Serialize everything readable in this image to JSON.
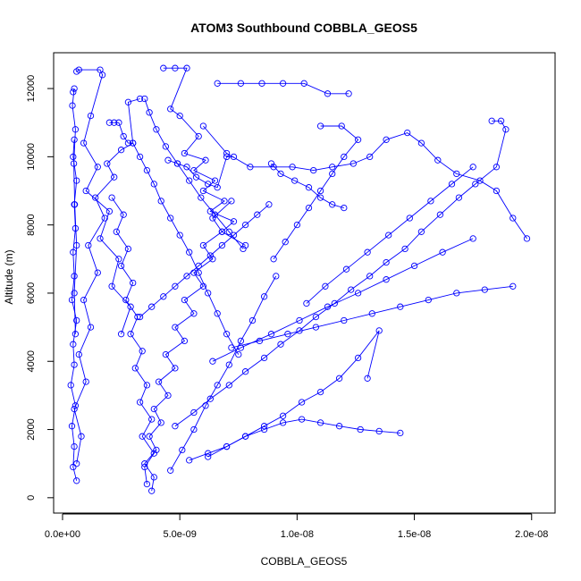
{
  "chart_data": {
    "type": "line",
    "title": "ATOM3 Southbound COBBLA_GEOS5",
    "xlabel": "COBBLA_GEOS5",
    "ylabel": "Altitude (m)",
    "xlim": [
      -3.8e-10,
      2.1e-08
    ],
    "ylim": [
      -450,
      13050
    ],
    "x_ticks": [
      {
        "value": 0,
        "label": "0.0e+00"
      },
      {
        "value": 5e-09,
        "label": "5.0e-09"
      },
      {
        "value": 1e-08,
        "label": "1.0e-08"
      },
      {
        "value": 1.5e-08,
        "label": "1.5e-08"
      },
      {
        "value": 2e-08,
        "label": "2.0e-08"
      }
    ],
    "y_ticks": [
      {
        "value": 0,
        "label": "0"
      },
      {
        "value": 2000,
        "label": "2000"
      },
      {
        "value": 4000,
        "label": "4000"
      },
      {
        "value": 6000,
        "label": "6000"
      },
      {
        "value": 8000,
        "label": "8000"
      },
      {
        "value": 10000,
        "label": "10000"
      },
      {
        "value": 12000,
        "label": "12000"
      }
    ],
    "grid": false,
    "legend": "none",
    "line_color": "#0000ff",
    "marker": "open-circle",
    "series": [
      {
        "x": [
          6e-10,
          4.5e-10,
          5e-10,
          4e-10,
          5.5e-10,
          3.5e-10,
          5e-10,
          4.5e-10,
          6e-10,
          4e-10,
          5e-10,
          4.5e-10,
          5.5e-10,
          5e-10,
          6e-10,
          4.5e-10,
          5e-10
        ],
        "y": [
          500,
          900,
          1500,
          2100,
          2700,
          3300,
          3900,
          4500,
          5200,
          5800,
          6500,
          7200,
          7900,
          8600,
          9300,
          10000,
          10500
        ]
      },
      {
        "x": [
          6e-10,
          8e-10,
          5e-10,
          1e-09,
          7e-10,
          1.2e-09,
          9e-10,
          1.5e-09,
          1.1e-09,
          1.8e-09,
          1.4e-09,
          2.2e-09,
          1.9e-09,
          2.5e-09,
          3e-09,
          2.8e-09,
          3.3e-09
        ],
        "y": [
          1000,
          1800,
          2600,
          3400,
          4200,
          5000,
          5800,
          6600,
          7400,
          8200,
          8800,
          9400,
          9800,
          10200,
          10400,
          11600,
          11700
        ]
      },
      {
        "x": [
          4.5e-10,
          5e-10,
          4.2e-10,
          5.5e-10,
          4.8e-10,
          5.2e-10,
          6e-10,
          5e-10,
          5.5e-10
        ],
        "y": [
          11900,
          12000,
          11500,
          10800,
          9800,
          8600,
          7400,
          6000,
          4800
        ]
      },
      {
        "x": [
          6e-10,
          7e-10,
          1.6e-09,
          1.7e-09,
          1.2e-09,
          9e-10,
          1.5e-09,
          1e-09,
          2e-09,
          1.6e-09,
          2.4e-09,
          2.1e-09,
          2.9e-09,
          2.5e-09
        ],
        "y": [
          12500,
          12550,
          12550,
          12400,
          11200,
          10400,
          9700,
          9000,
          8400,
          7600,
          7000,
          6200,
          5600,
          4800
        ]
      },
      {
        "x": [
          3.8e-09,
          3.9e-09,
          3.5e-09,
          4e-09,
          3.7e-09,
          4.2e-09,
          3.9e-09,
          4.5e-09,
          4.1e-09,
          4.8e-09,
          4.4e-09,
          5.2e-09,
          4.8e-09,
          5.6e-09,
          5.2e-09,
          6e-09,
          5.6e-09,
          6.4e-09,
          6e-09,
          6.8e-09,
          6.4e-09,
          7.2e-09
        ],
        "y": [
          200,
          600,
          1000,
          1400,
          1800,
          2200,
          2600,
          3000,
          3400,
          3800,
          4200,
          4600,
          5000,
          5400,
          5800,
          6200,
          6600,
          7000,
          7400,
          7800,
          8200,
          8700
        ]
      },
      {
        "x": [
          4.3e-09,
          4.8e-09,
          5.3e-09,
          4.6e-09,
          5e-09,
          5.8e-09,
          5.2e-09,
          6.1e-09,
          5.6e-09,
          6.5e-09,
          6e-09,
          6.9e-09,
          6.3e-09,
          7.3e-09,
          6.8e-09,
          7.8e-09
        ],
        "y": [
          12600,
          12600,
          12600,
          11400,
          11200,
          10600,
          10100,
          9900,
          9600,
          9300,
          9000,
          8700,
          8400,
          8100,
          7800,
          7400
        ]
      },
      {
        "x": [
          3.6e-09,
          3.5e-09,
          3.9e-09,
          3.4e-09,
          3.8e-09,
          3.3e-09,
          3.6e-09,
          3.1e-09,
          3.4e-09,
          2.9e-09,
          3.2e-09,
          2.7e-09,
          3e-09,
          2.5e-09,
          2.8e-09,
          2.3e-09,
          2.6e-09,
          2.1e-09
        ],
        "y": [
          400,
          900,
          1300,
          1800,
          2300,
          2800,
          3300,
          3800,
          4300,
          4800,
          5300,
          5800,
          6300,
          6800,
          7300,
          7800,
          8300,
          8800
        ]
      },
      {
        "x": [
          6.6e-09,
          7.6e-09,
          8.5e-09,
          9.4e-09,
          1.03e-08,
          1.13e-08,
          1.22e-08
        ],
        "y": [
          12150,
          12150,
          12150,
          12150,
          12150,
          11850,
          11850
        ]
      },
      {
        "x": [
          6e-09,
          7e-09,
          8e-09,
          9e-09,
          9.8e-09,
          1.07e-08,
          1.15e-08,
          1.24e-08,
          1.31e-08,
          1.38e-08,
          1.47e-08,
          1.53e-08,
          1.6e-08,
          1.68e-08,
          1.78e-08,
          1.85e-08,
          1.92e-08,
          1.98e-08
        ],
        "y": [
          10900,
          10100,
          9700,
          9700,
          9700,
          9600,
          9700,
          9800,
          10000,
          10500,
          10700,
          10400,
          9900,
          9500,
          9300,
          9000,
          8200,
          7600
        ]
      },
      {
        "x": [
          1.83e-08,
          1.87e-08,
          1.89e-08,
          1.85e-08,
          1.76e-08,
          1.69e-08,
          1.61e-08,
          1.53e-08,
          1.46e-08,
          1.38e-08,
          1.31e-08,
          1.23e-08,
          1.16e-08,
          1.08e-08,
          1.01e-08,
          9.3e-09,
          8.6e-09,
          7.8e-09,
          7.1e-09,
          6.3e-09,
          5.6e-09,
          4.8e-09
        ],
        "y": [
          11050,
          11050,
          10800,
          9700,
          9200,
          8800,
          8300,
          7800,
          7300,
          6900,
          6500,
          6100,
          5700,
          5300,
          4900,
          4500,
          4100,
          3700,
          3300,
          2900,
          2500,
          2100
        ]
      },
      {
        "x": [
          1.44e-08,
          1.35e-08,
          1.27e-08,
          1.18e-08,
          1.1e-08,
          1.02e-08,
          9.4e-09,
          8.6e-09,
          7.8e-09,
          7e-09,
          6.2e-09,
          5.4e-09
        ],
        "y": [
          1900,
          1950,
          2000,
          2100,
          2200,
          2300,
          2200,
          2000,
          1800,
          1500,
          1300,
          1100
        ]
      },
      {
        "x": [
          1.75e-08,
          1.62e-08,
          1.5e-08,
          1.38e-08,
          1.26e-08,
          1.13e-08,
          1.01e-08,
          8.9e-09,
          7.6e-09,
          6.4e-09
        ],
        "y": [
          7600,
          7200,
          6800,
          6400,
          6000,
          5600,
          5200,
          4800,
          4400,
          4000
        ]
      },
      {
        "x": [
          1.92e-08,
          1.8e-08,
          1.68e-08,
          1.56e-08,
          1.44e-08,
          1.32e-08,
          1.2e-08,
          1.08e-08,
          9.6e-09,
          8.4e-09,
          7.2e-09
        ],
        "y": [
          6200,
          6100,
          6000,
          5800,
          5600,
          5400,
          5200,
          5000,
          4800,
          4600,
          4400
        ]
      },
      {
        "x": [
          1.3e-08,
          1.35e-08,
          1.26e-08,
          1.18e-08,
          1.1e-08,
          1.02e-08,
          9.4e-09,
          8.6e-09,
          7.8e-09,
          7e-09,
          6.2e-09
        ],
        "y": [
          3500,
          4900,
          4100,
          3500,
          3100,
          2800,
          2400,
          2100,
          1800,
          1500,
          1200
        ]
      },
      {
        "x": [
          4.5e-09,
          4.9e-09,
          5.3e-09,
          5.7e-09,
          6.2e-09,
          6.6e-09,
          7e-09,
          7.3e-09
        ],
        "y": [
          9900,
          9800,
          9700,
          9400,
          9200,
          9100,
          10000,
          10000
        ]
      },
      {
        "x": [
          2e-09,
          2.2e-09,
          2.4e-09,
          2.6e-09,
          2.8e-09,
          3e-09,
          3.3e-09,
          3.6e-09,
          3.9e-09,
          4.2e-09,
          4.6e-09,
          5e-09,
          5.4e-09,
          5.8e-09,
          6.2e-09,
          6.6e-09,
          7e-09,
          7.5e-09
        ],
        "y": [
          11000,
          11000,
          11000,
          10600,
          10400,
          10400,
          10000,
          9600,
          9200,
          8700,
          8200,
          7700,
          7200,
          6600,
          6000,
          5400,
          4800,
          4200
        ]
      },
      {
        "x": [
          8.9e-09,
          9.3e-09,
          9.9e-09,
          1.05e-08,
          1.1e-08,
          1.15e-08,
          1.2e-08
        ],
        "y": [
          9800,
          9500,
          9300,
          9100,
          8800,
          8600,
          8500
        ]
      },
      {
        "x": [
          4.6e-09,
          5.1e-09,
          5.6e-09,
          6.1e-09,
          6.6e-09,
          7.1e-09,
          7.6e-09,
          8.1e-09,
          8.6e-09,
          9.1e-09
        ],
        "y": [
          800,
          1400,
          2000,
          2700,
          3300,
          3900,
          4600,
          5200,
          5900,
          6500
        ]
      },
      {
        "x": [
          3.3e-09,
          3.8e-09,
          4.3e-09,
          4.8e-09,
          5.3e-09,
          5.8e-09,
          6.3e-09,
          6.8e-09,
          7.3e-09,
          7.8e-09,
          8.3e-09,
          8.8e-09
        ],
        "y": [
          5300,
          5600,
          5900,
          6200,
          6500,
          6800,
          7100,
          7400,
          7700,
          8000,
          8300,
          8600
        ]
      },
      {
        "x": [
          3.5e-09,
          3.7e-09,
          4e-09,
          4.4e-09,
          4.9e-09,
          5.4e-09,
          5.9e-09,
          6.5e-09,
          7.1e-09,
          7.7e-09
        ],
        "y": [
          11700,
          11300,
          10800,
          10300,
          9800,
          9300,
          8800,
          8300,
          7800,
          7300
        ]
      },
      {
        "x": [
          1.1e-08,
          1.19e-08,
          1.26e-08,
          1.2e-08,
          1.15e-08,
          1.1e-08,
          1.05e-08,
          1e-08,
          9.5e-09,
          9e-09
        ],
        "y": [
          10900,
          10900,
          10500,
          10000,
          9500,
          9000,
          8500,
          8000,
          7500,
          7000
        ]
      },
      {
        "x": [
          1.04e-08,
          1.12e-08,
          1.21e-08,
          1.3e-08,
          1.39e-08,
          1.48e-08,
          1.57e-08,
          1.66e-08,
          1.75e-08
        ],
        "y": [
          5700,
          6200,
          6700,
          7200,
          7700,
          8200,
          8700,
          9200,
          9700
        ]
      }
    ]
  }
}
